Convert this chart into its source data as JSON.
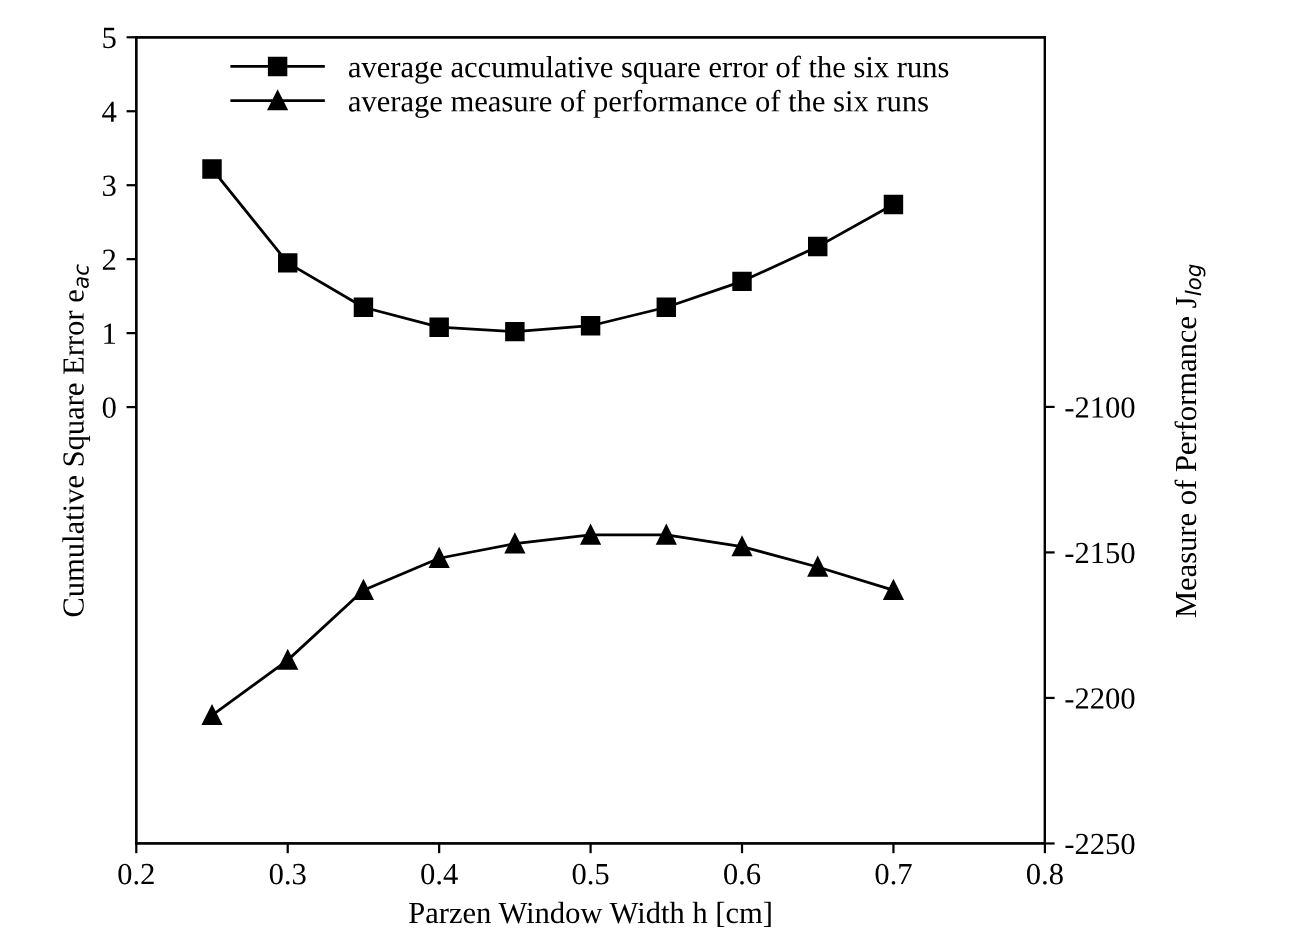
{
  "chart_data": {
    "type": "line",
    "xlabel": "Parzen Window Width h [cm]",
    "ylabel": "Cumulative Square Error e$_{ac}$",
    "y2label": "Measure of Performance J$_{log}$",
    "x": [
      0.25,
      0.3,
      0.35,
      0.4,
      0.45,
      0.5,
      0.55,
      0.6,
      0.65,
      0.7
    ],
    "series": [
      {
        "name": "average accumulative square error of the six runs",
        "color": "#000000",
        "marker": "square",
        "values": [
          3.22,
          1.95,
          1.35,
          1.08,
          1.02,
          1.1,
          1.35,
          1.7,
          2.17,
          2.74
        ]
      },
      {
        "name": "average measure of performance of the six runs",
        "color": "#000000",
        "marker": "triangle",
        "axis": "y2",
        "values": [
          -2206,
          -2187,
          -2163,
          -2152,
          -2147,
          -2144,
          -2144,
          -2148,
          -2155,
          -2163
        ]
      }
    ],
    "xlim": [
      0.2,
      0.8
    ],
    "xticks": [
      0.2,
      0.3,
      0.4,
      0.5,
      0.6,
      0.7,
      0.8
    ],
    "ylim": [
      -5.9,
      5
    ],
    "yticks": [
      0,
      1,
      2,
      3,
      4,
      5
    ],
    "y2lim": [
      -2250,
      -1973
    ],
    "y2ticks": [
      -2250,
      -2200,
      -2150,
      -2100
    ],
    "legend": "top",
    "grid": false,
    "line_style": "solid"
  }
}
